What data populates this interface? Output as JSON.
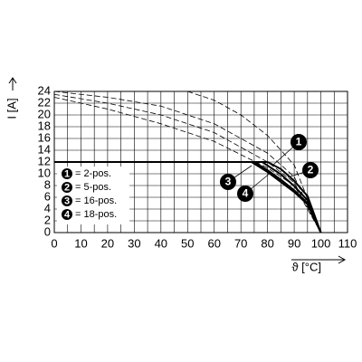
{
  "chart_data": {
    "type": "line",
    "ylabel": "I [A]",
    "xlabel": "ϑ [°C]",
    "xlim": [
      0,
      110
    ],
    "ylim": [
      0,
      24
    ],
    "xticks": [
      0,
      10,
      20,
      30,
      40,
      50,
      60,
      70,
      80,
      90,
      100,
      110
    ],
    "yticks": [
      0,
      2,
      4,
      6,
      8,
      10,
      12,
      14,
      16,
      18,
      20,
      22,
      24
    ],
    "xgrid": [
      0,
      5,
      10,
      15,
      20,
      25,
      30,
      35,
      40,
      45,
      50,
      55,
      60,
      65,
      70,
      75,
      80,
      85,
      90,
      95,
      100,
      105,
      110
    ],
    "grid": true,
    "series": [
      {
        "name": "= 2-pos.",
        "marker": "1",
        "color": "#000000",
        "x": [
          0,
          80,
          85,
          90,
          95,
          100
        ],
        "values": [
          12,
          12,
          10.8,
          8.8,
          6.2,
          0
        ]
      },
      {
        "name": "= 5-pos.",
        "marker": "2",
        "color": "#000000",
        "x": [
          0,
          78,
          85,
          90,
          95,
          100
        ],
        "values": [
          12,
          12,
          9.9,
          7.9,
          5.5,
          0
        ]
      },
      {
        "name": "= 16-pos.",
        "marker": "3",
        "color": "#000000",
        "x": [
          0,
          75,
          80,
          85,
          90,
          95,
          100
        ],
        "values": [
          12,
          12,
          10.6,
          9,
          7.2,
          5,
          0
        ]
      },
      {
        "name": "= 18-pos.",
        "marker": "4",
        "color": "#000000",
        "x": [
          0,
          74,
          80,
          85,
          90,
          95,
          100
        ],
        "values": [
          12,
          12,
          10.3,
          8.6,
          6.9,
          4.8,
          0
        ]
      }
    ],
    "dashed_series": [
      {
        "x": [
          50,
          60,
          70,
          80,
          90,
          100
        ],
        "values": [
          24,
          22.5,
          20,
          16.5,
          11.5,
          0
        ]
      },
      {
        "x": [
          0,
          20,
          40,
          60,
          80,
          90,
          100
        ],
        "values": [
          24,
          23,
          21.5,
          18.5,
          13.5,
          9.5,
          0
        ]
      },
      {
        "x": [
          0,
          20,
          40,
          60,
          80,
          90,
          100
        ],
        "values": [
          23.5,
          22,
          20,
          17,
          12,
          8.5,
          0
        ]
      },
      {
        "x": [
          0,
          20,
          40,
          60,
          80,
          90,
          100
        ],
        "values": [
          23,
          21,
          18.5,
          15.5,
          11,
          8,
          0
        ]
      }
    ]
  }
}
